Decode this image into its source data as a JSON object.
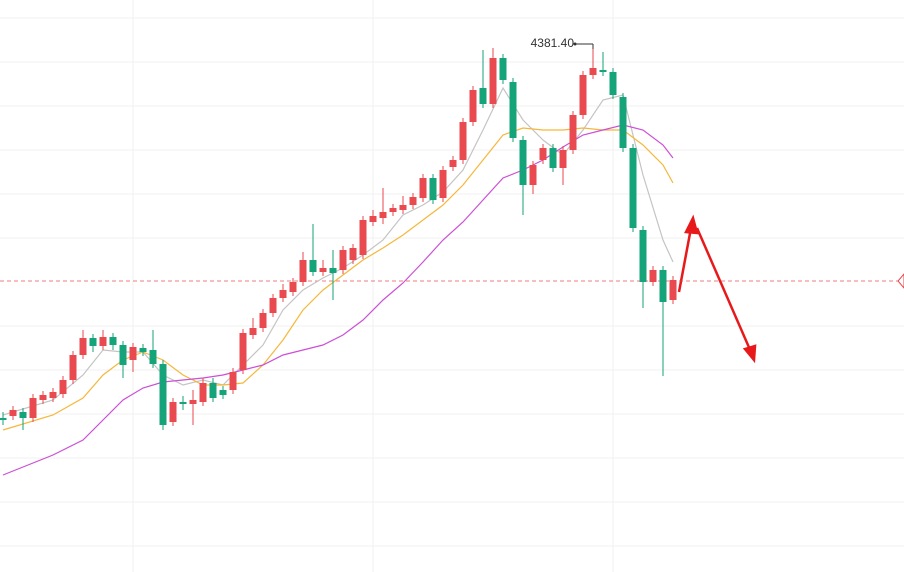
{
  "chart_data": {
    "type": "candlestick",
    "ylim": [
      3853.4,
      4425.4
    ],
    "up_color": "#e84a4f",
    "down_color": "#15a37a",
    "candles": {
      "open": [
        4007.4,
        4009.4,
        4013.4,
        4007.4,
        4025.4,
        4027.4,
        4031.4,
        4045.4,
        4070.4,
        4087.4,
        4079.4,
        4088.4,
        4080.4,
        4065.4,
        4077.4,
        4075.4,
        4061.4,
        4003.4,
        4023.4,
        4021.4,
        4023.4,
        4042.4,
        4035.4,
        4035.4,
        4055.4,
        4090.4,
        4097.4,
        4112.4,
        4127.4,
        4133.4,
        4143.4,
        4165.4,
        4153.4,
        4157.4,
        4155.4,
        4165.4,
        4170.4,
        4203.4,
        4207.4,
        4213.4,
        4215.4,
        4220.4,
        4227.4,
        4247.4,
        4227.4,
        4258.4,
        4265.4,
        4303.4,
        4337.4,
        4321.4,
        4367.4,
        4343.4,
        4285.4,
        4240.4,
        4265.4,
        4277.4,
        4257.4,
        4275.4,
        4310.4,
        4350.4,
        4355.4,
        4353.4,
        4328.4,
        4277.4,
        4195.4,
        4143.4,
        4155.4,
        4125.4
      ],
      "high": [
        4013.4,
        4019.4,
        4017.4,
        4031.4,
        4034.4,
        4037.4,
        4049.4,
        4074.4,
        4095.4,
        4091.4,
        4095.4,
        4092.4,
        4084.4,
        4082.4,
        4081.4,
        4095.4,
        4065.4,
        4027.4,
        4029.4,
        4035.4,
        4047.4,
        4047.4,
        4039.4,
        4057.4,
        4096.4,
        4107.4,
        4116.4,
        4131.4,
        4141.4,
        4147.4,
        4173.4,
        4201.4,
        4165.4,
        4175.4,
        4179.4,
        4181.4,
        4209.4,
        4215.4,
        4237.4,
        4221.4,
        4229.4,
        4232.4,
        4251.4,
        4251.4,
        4259.4,
        4269.4,
        4307.4,
        4339.4,
        4375.4,
        4377.4,
        4371.4,
        4347.4,
        4289.4,
        4264.4,
        4281.4,
        4281.4,
        4279.4,
        4314.4,
        4354.4,
        4381.4,
        4373.4,
        4357.4,
        4332.4,
        4281.4,
        4199.4,
        4159.4,
        4159.4,
        4149.4
      ],
      "low": [
        4000.4,
        4005.4,
        3995.4,
        4003.4,
        4021.4,
        4023.4,
        4027.4,
        4041.4,
        4066.4,
        4073.4,
        4075.4,
        4075.4,
        4047.4,
        4053.4,
        4069.4,
        4057.4,
        3995.4,
        3999.4,
        4015.4,
        4000.4,
        4019.4,
        4023.4,
        4026.4,
        4031.4,
        4051.4,
        4086.4,
        4093.4,
        4108.4,
        4123.4,
        4129.4,
        4139.4,
        4149.4,
        4149.4,
        4125.4,
        4151.4,
        4161.4,
        4166.4,
        4199.4,
        4201.4,
        4209.4,
        4211.4,
        4216.4,
        4223.4,
        4221.4,
        4223.4,
        4254.4,
        4261.4,
        4299.4,
        4317.4,
        4317.4,
        4341.4,
        4283.4,
        4210.4,
        4231.4,
        4261.4,
        4253.4,
        4240.4,
        4271.4,
        4306.4,
        4346.4,
        4349.4,
        4326.4,
        4273.4,
        4193.4,
        4117.4,
        4139.4,
        4049.4,
        4121.4
      ],
      "close": [
        4005.4,
        4015.4,
        4007.4,
        4027.4,
        4030.4,
        4033.4,
        4045.4,
        4070.4,
        4087.4,
        4079.4,
        4088.4,
        4080.4,
        4060.4,
        4078.4,
        4073.4,
        4061.4,
        4000.4,
        4023.4,
        4021.4,
        4025.4,
        4042.4,
        4027.4,
        4030.4,
        4053.4,
        4092.4,
        4097.4,
        4112.4,
        4127.4,
        4135.4,
        4143.4,
        4165.4,
        4153.4,
        4157.4,
        4152.4,
        4175.4,
        4177.4,
        4205.4,
        4209.4,
        4213.4,
        4217.4,
        4220.4,
        4228.4,
        4247.4,
        4225.4,
        4255.4,
        4265.4,
        4303.4,
        4335.4,
        4321.4,
        4367.4,
        4345.4,
        4287.4,
        4240.4,
        4260.4,
        4277.4,
        4257.4,
        4275.4,
        4310.4,
        4350.4,
        4357.4,
        4353.4,
        4330.4,
        4277.4,
        4197.4,
        4143.4,
        4155.4,
        4123.4,
        4145.4
      ]
    },
    "ma_x": [
      0,
      5,
      8,
      10,
      12,
      14,
      16,
      18,
      20,
      22,
      24,
      26,
      28,
      30,
      32,
      34,
      36,
      38,
      40,
      42,
      44,
      46,
      48,
      50,
      52,
      54,
      56,
      58,
      60,
      62,
      64,
      66,
      67
    ],
    "series": [
      {
        "color": "#c4c4c4",
        "values": [
          4010.4,
          4025.4,
          4050.4,
          4075.4,
          4073.4,
          4073.4,
          4050.4,
          4040.4,
          4045.4,
          4040.4,
          4060.4,
          4080.4,
          4115.4,
          4135.4,
          4147.4,
          4157.4,
          4170.4,
          4185.4,
          4210.4,
          4220.4,
          4233.4,
          4255.4,
          4295.4,
          4337.4,
          4305.4,
          4285.4,
          4270.4,
          4295.4,
          4325.4,
          4330.4,
          4250.4,
          4185.4,
          4163.4
        ]
      },
      {
        "color": "#f5b73b",
        "values": [
          3995.4,
          4010.4,
          4027.4,
          4050.4,
          4065.4,
          4073.4,
          4065.4,
          4050.4,
          4040.4,
          4040.4,
          4042.4,
          4060.4,
          4085.4,
          4115.4,
          4135.4,
          4150.4,
          4165.4,
          4177.4,
          4190.4,
          4205.4,
          4220.4,
          4240.4,
          4265.4,
          4290.4,
          4297.4,
          4295.4,
          4295.4,
          4297.4,
          4295.4,
          4295.4,
          4280.4,
          4260.4,
          4242.4
        ]
      },
      {
        "color": "#cc4fd6",
        "values": [
          3950.4,
          3970.4,
          3985.4,
          4005.4,
          4025.4,
          4037.4,
          4043.4,
          4045.4,
          4047.4,
          4050.4,
          4055.4,
          4060.4,
          4070.4,
          4075.4,
          4080.4,
          4090.4,
          4105.4,
          4125.4,
          4142.4,
          4163.4,
          4185.4,
          4203.4,
          4225.4,
          4247.4,
          4255.4,
          4265.4,
          4278.4,
          4290.4,
          4295.4,
          4300.4,
          4295.4,
          4280.4,
          4267.4
        ]
      }
    ],
    "price_line": 4144.4,
    "annotations": [
      {
        "text": "4381.40",
        "index": 59
      }
    ]
  }
}
